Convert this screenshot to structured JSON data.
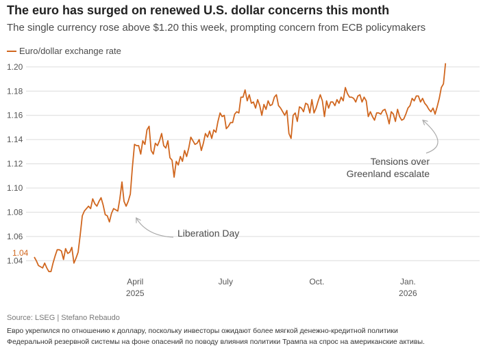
{
  "header": {
    "title": "The euro has surged on renewed U.S. dollar concerns this month",
    "subtitle": "The single currency rose above $1.20 this week, prompting concern from ECB policymakers"
  },
  "footer": {
    "source": "Source: LSEG | Stefano Rebaudo",
    "note_line1": "Евро укрепился по отношению к доллару, поскольку инвесторы ожидают более мягкой денежно-кредитной политики",
    "note_line2": "Федеральной резервной системы на фоне опасений по поводу влияния политики Трампа на спрос на американские активы."
  },
  "colors": {
    "line": "#d0661e",
    "grid": "#dcdcdc",
    "arrow": "#aaaaaa"
  },
  "chart_data": {
    "type": "line",
    "title": "The euro has surged on renewed U.S. dollar concerns this month",
    "subtitle": "The single currency rose above $1.20 this week, prompting concern from ECB policymakers",
    "legend": "Euro/dollar exchange rate",
    "start_label": "1.04",
    "ylim": [
      1.03,
      1.205
    ],
    "xlim": [
      0,
      64
    ],
    "y_ticks": [
      {
        "value": 1.04,
        "label": "1.04"
      },
      {
        "value": 1.06,
        "label": "1.06"
      },
      {
        "value": 1.08,
        "label": "1.08"
      },
      {
        "value": 1.1,
        "label": "1.10"
      },
      {
        "value": 1.12,
        "label": "1.12"
      },
      {
        "value": 1.14,
        "label": "1.14"
      },
      {
        "value": 1.16,
        "label": "1.16"
      },
      {
        "value": 1.18,
        "label": "1.18"
      },
      {
        "value": 1.2,
        "label": "1.20"
      }
    ],
    "x_ticks": [
      {
        "x": 14.5,
        "month": "April",
        "year": "2025"
      },
      {
        "x": 27.5,
        "month": "July",
        "year": ""
      },
      {
        "x": 40.6,
        "month": "Oct.",
        "year": ""
      },
      {
        "x": 53.7,
        "month": "Jan.",
        "year": "2026"
      }
    ],
    "annotations": [
      {
        "text": "Liberation Day",
        "x": 14.3,
        "y": 1.076
      },
      {
        "text": "Tensions over",
        "text2": "Greenland escalate",
        "x": 56.1,
        "y": 1.159
      }
    ],
    "x": [
      0,
      0.3,
      0.6,
      0.9,
      1.2,
      1.5,
      1.8,
      2.1,
      2.4,
      2.7,
      3.0,
      3.3,
      3.6,
      3.9,
      4.2,
      4.5,
      4.8,
      5.1,
      5.4,
      5.7,
      6.0,
      6.3,
      6.6,
      6.9,
      7.2,
      7.5,
      7.8,
      8.1,
      8.4,
      8.7,
      9.0,
      9.3,
      9.6,
      9.9,
      10.2,
      10.5,
      10.8,
      11.1,
      11.4,
      11.7,
      12.0,
      12.3,
      12.6,
      12.9,
      13.2,
      13.5,
      13.8,
      14.1,
      14.4,
      14.7,
      15.0,
      15.3,
      15.6,
      15.9,
      16.2,
      16.5,
      16.8,
      17.1,
      17.4,
      17.7,
      18.0,
      18.3,
      18.6,
      18.9,
      19.2,
      19.5,
      19.8,
      20.1,
      20.4,
      20.7,
      21.0,
      21.3,
      21.6,
      21.9,
      22.2,
      22.5,
      22.8,
      23.1,
      23.4,
      23.7,
      24.0,
      24.3,
      24.6,
      24.9,
      25.2,
      25.5,
      25.8,
      26.1,
      26.4,
      26.7,
      27.0,
      27.3,
      27.6,
      27.9,
      28.2,
      28.5,
      28.8,
      29.1,
      29.4,
      29.7,
      30.0,
      30.3,
      30.6,
      30.9,
      31.2,
      31.5,
      31.8,
      32.1,
      32.4,
      32.7,
      33.0,
      33.3,
      33.6,
      33.9,
      34.2,
      34.5,
      34.8,
      35.1,
      35.4,
      35.7,
      36.0,
      36.3,
      36.6,
      36.9,
      37.2,
      37.5,
      37.8,
      38.1,
      38.4,
      38.7,
      39.0,
      39.3,
      39.6,
      39.9,
      40.2,
      40.5,
      40.8,
      41.1,
      41.4,
      41.7,
      42.0,
      42.3,
      42.6,
      42.9,
      43.2,
      43.5,
      43.8,
      44.1,
      44.4,
      44.7,
      45.0,
      45.3,
      45.6,
      45.9,
      46.2,
      46.5,
      46.8,
      47.1,
      47.4,
      47.7,
      48.0,
      48.3,
      48.6,
      48.9,
      49.2,
      49.5,
      49.8,
      50.1,
      50.4,
      50.7,
      51.0,
      51.3,
      51.6,
      51.9,
      52.2,
      52.5,
      52.8,
      53.1,
      53.4,
      53.7,
      54.0,
      54.3,
      54.6,
      54.9,
      55.2,
      55.5,
      55.8,
      56.1,
      56.4,
      56.7,
      57.0,
      57.3,
      57.6,
      57.9,
      58.2,
      58.5,
      58.8,
      59.1
    ],
    "y": [
      1.043,
      1.04,
      1.036,
      1.035,
      1.034,
      1.038,
      1.034,
      1.031,
      1.031,
      1.038,
      1.044,
      1.049,
      1.049,
      1.048,
      1.041,
      1.05,
      1.046,
      1.047,
      1.051,
      1.038,
      1.042,
      1.047,
      1.061,
      1.077,
      1.081,
      1.083,
      1.085,
      1.083,
      1.091,
      1.087,
      1.085,
      1.089,
      1.092,
      1.086,
      1.078,
      1.077,
      1.072,
      1.079,
      1.083,
      1.082,
      1.081,
      1.091,
      1.105,
      1.089,
      1.085,
      1.089,
      1.095,
      1.117,
      1.136,
      1.135,
      1.135,
      1.128,
      1.139,
      1.136,
      1.148,
      1.151,
      1.131,
      1.128,
      1.137,
      1.135,
      1.139,
      1.145,
      1.135,
      1.133,
      1.139,
      1.125,
      1.123,
      1.109,
      1.122,
      1.119,
      1.126,
      1.122,
      1.131,
      1.126,
      1.133,
      1.142,
      1.139,
      1.136,
      1.137,
      1.14,
      1.131,
      1.137,
      1.145,
      1.142,
      1.147,
      1.141,
      1.148,
      1.146,
      1.155,
      1.162,
      1.159,
      1.16,
      1.149,
      1.151,
      1.154,
      1.154,
      1.161,
      1.163,
      1.162,
      1.175,
      1.175,
      1.181,
      1.172,
      1.177,
      1.17,
      1.171,
      1.166,
      1.173,
      1.168,
      1.16,
      1.169,
      1.165,
      1.172,
      1.168,
      1.169,
      1.175,
      1.177,
      1.168,
      1.166,
      1.163,
      1.16,
      1.164,
      1.145,
      1.141,
      1.16,
      1.162,
      1.155,
      1.167,
      1.166,
      1.163,
      1.17,
      1.169,
      1.162,
      1.173,
      1.162,
      1.166,
      1.172,
      1.177,
      1.172,
      1.159,
      1.172,
      1.166,
      1.171,
      1.171,
      1.168,
      1.173,
      1.17,
      1.175,
      1.172,
      1.183,
      1.178,
      1.175,
      1.175,
      1.174,
      1.171,
      1.176,
      1.177,
      1.171,
      1.175,
      1.172,
      1.159,
      1.163,
      1.159,
      1.156,
      1.162,
      1.162,
      1.161,
      1.164,
      1.165,
      1.16,
      1.153,
      1.163,
      1.161,
      1.155,
      1.165,
      1.159,
      1.156,
      1.157,
      1.161,
      1.166,
      1.168,
      1.174,
      1.172,
      1.176,
      1.176,
      1.171,
      1.174,
      1.17,
      1.168,
      1.165,
      1.163,
      1.166,
      1.161,
      1.167,
      1.174,
      1.183,
      1.186,
      1.203
    ]
  }
}
